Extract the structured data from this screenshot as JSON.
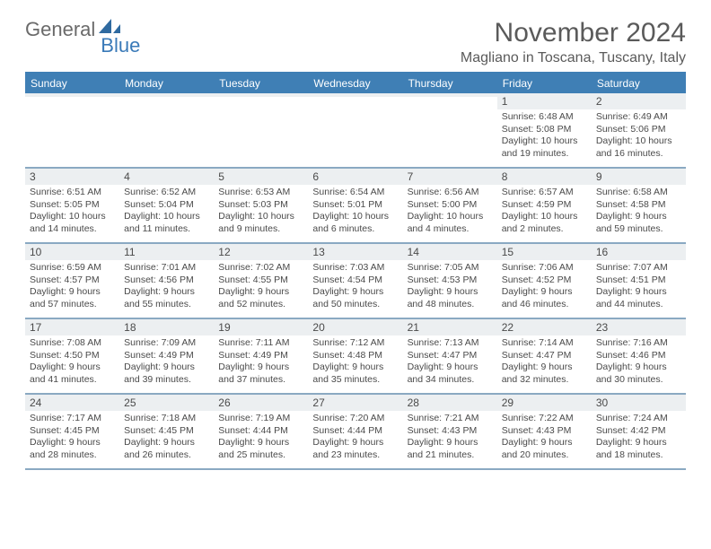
{
  "brand": {
    "word1": "General",
    "word2": "Blue"
  },
  "title": "November 2024",
  "location": "Magliano in Toscana, Tuscany, Italy",
  "colors": {
    "header_bg": "#3f7fb5",
    "header_text": "#ffffff",
    "daynum_bg": "#eceff1",
    "week_border": "#8aa9c2",
    "text": "#4a4a4a",
    "title_text": "#5a5a5a",
    "logo_gray": "#6a6a6a",
    "logo_blue": "#3a7ab8"
  },
  "weekdays": [
    "Sunday",
    "Monday",
    "Tuesday",
    "Wednesday",
    "Thursday",
    "Friday",
    "Saturday"
  ],
  "weeks": [
    [
      {
        "empty": true
      },
      {
        "empty": true
      },
      {
        "empty": true
      },
      {
        "empty": true
      },
      {
        "empty": true
      },
      {
        "num": "1",
        "sunrise": "Sunrise: 6:48 AM",
        "sunset": "Sunset: 5:08 PM",
        "day1": "Daylight: 10 hours",
        "day2": "and 19 minutes."
      },
      {
        "num": "2",
        "sunrise": "Sunrise: 6:49 AM",
        "sunset": "Sunset: 5:06 PM",
        "day1": "Daylight: 10 hours",
        "day2": "and 16 minutes."
      }
    ],
    [
      {
        "num": "3",
        "sunrise": "Sunrise: 6:51 AM",
        "sunset": "Sunset: 5:05 PM",
        "day1": "Daylight: 10 hours",
        "day2": "and 14 minutes."
      },
      {
        "num": "4",
        "sunrise": "Sunrise: 6:52 AM",
        "sunset": "Sunset: 5:04 PM",
        "day1": "Daylight: 10 hours",
        "day2": "and 11 minutes."
      },
      {
        "num": "5",
        "sunrise": "Sunrise: 6:53 AM",
        "sunset": "Sunset: 5:03 PM",
        "day1": "Daylight: 10 hours",
        "day2": "and 9 minutes."
      },
      {
        "num": "6",
        "sunrise": "Sunrise: 6:54 AM",
        "sunset": "Sunset: 5:01 PM",
        "day1": "Daylight: 10 hours",
        "day2": "and 6 minutes."
      },
      {
        "num": "7",
        "sunrise": "Sunrise: 6:56 AM",
        "sunset": "Sunset: 5:00 PM",
        "day1": "Daylight: 10 hours",
        "day2": "and 4 minutes."
      },
      {
        "num": "8",
        "sunrise": "Sunrise: 6:57 AM",
        "sunset": "Sunset: 4:59 PM",
        "day1": "Daylight: 10 hours",
        "day2": "and 2 minutes."
      },
      {
        "num": "9",
        "sunrise": "Sunrise: 6:58 AM",
        "sunset": "Sunset: 4:58 PM",
        "day1": "Daylight: 9 hours",
        "day2": "and 59 minutes."
      }
    ],
    [
      {
        "num": "10",
        "sunrise": "Sunrise: 6:59 AM",
        "sunset": "Sunset: 4:57 PM",
        "day1": "Daylight: 9 hours",
        "day2": "and 57 minutes."
      },
      {
        "num": "11",
        "sunrise": "Sunrise: 7:01 AM",
        "sunset": "Sunset: 4:56 PM",
        "day1": "Daylight: 9 hours",
        "day2": "and 55 minutes."
      },
      {
        "num": "12",
        "sunrise": "Sunrise: 7:02 AM",
        "sunset": "Sunset: 4:55 PM",
        "day1": "Daylight: 9 hours",
        "day2": "and 52 minutes."
      },
      {
        "num": "13",
        "sunrise": "Sunrise: 7:03 AM",
        "sunset": "Sunset: 4:54 PM",
        "day1": "Daylight: 9 hours",
        "day2": "and 50 minutes."
      },
      {
        "num": "14",
        "sunrise": "Sunrise: 7:05 AM",
        "sunset": "Sunset: 4:53 PM",
        "day1": "Daylight: 9 hours",
        "day2": "and 48 minutes."
      },
      {
        "num": "15",
        "sunrise": "Sunrise: 7:06 AM",
        "sunset": "Sunset: 4:52 PM",
        "day1": "Daylight: 9 hours",
        "day2": "and 46 minutes."
      },
      {
        "num": "16",
        "sunrise": "Sunrise: 7:07 AM",
        "sunset": "Sunset: 4:51 PM",
        "day1": "Daylight: 9 hours",
        "day2": "and 44 minutes."
      }
    ],
    [
      {
        "num": "17",
        "sunrise": "Sunrise: 7:08 AM",
        "sunset": "Sunset: 4:50 PM",
        "day1": "Daylight: 9 hours",
        "day2": "and 41 minutes."
      },
      {
        "num": "18",
        "sunrise": "Sunrise: 7:09 AM",
        "sunset": "Sunset: 4:49 PM",
        "day1": "Daylight: 9 hours",
        "day2": "and 39 minutes."
      },
      {
        "num": "19",
        "sunrise": "Sunrise: 7:11 AM",
        "sunset": "Sunset: 4:49 PM",
        "day1": "Daylight: 9 hours",
        "day2": "and 37 minutes."
      },
      {
        "num": "20",
        "sunrise": "Sunrise: 7:12 AM",
        "sunset": "Sunset: 4:48 PM",
        "day1": "Daylight: 9 hours",
        "day2": "and 35 minutes."
      },
      {
        "num": "21",
        "sunrise": "Sunrise: 7:13 AM",
        "sunset": "Sunset: 4:47 PM",
        "day1": "Daylight: 9 hours",
        "day2": "and 34 minutes."
      },
      {
        "num": "22",
        "sunrise": "Sunrise: 7:14 AM",
        "sunset": "Sunset: 4:47 PM",
        "day1": "Daylight: 9 hours",
        "day2": "and 32 minutes."
      },
      {
        "num": "23",
        "sunrise": "Sunrise: 7:16 AM",
        "sunset": "Sunset: 4:46 PM",
        "day1": "Daylight: 9 hours",
        "day2": "and 30 minutes."
      }
    ],
    [
      {
        "num": "24",
        "sunrise": "Sunrise: 7:17 AM",
        "sunset": "Sunset: 4:45 PM",
        "day1": "Daylight: 9 hours",
        "day2": "and 28 minutes."
      },
      {
        "num": "25",
        "sunrise": "Sunrise: 7:18 AM",
        "sunset": "Sunset: 4:45 PM",
        "day1": "Daylight: 9 hours",
        "day2": "and 26 minutes."
      },
      {
        "num": "26",
        "sunrise": "Sunrise: 7:19 AM",
        "sunset": "Sunset: 4:44 PM",
        "day1": "Daylight: 9 hours",
        "day2": "and 25 minutes."
      },
      {
        "num": "27",
        "sunrise": "Sunrise: 7:20 AM",
        "sunset": "Sunset: 4:44 PM",
        "day1": "Daylight: 9 hours",
        "day2": "and 23 minutes."
      },
      {
        "num": "28",
        "sunrise": "Sunrise: 7:21 AM",
        "sunset": "Sunset: 4:43 PM",
        "day1": "Daylight: 9 hours",
        "day2": "and 21 minutes."
      },
      {
        "num": "29",
        "sunrise": "Sunrise: 7:22 AM",
        "sunset": "Sunset: 4:43 PM",
        "day1": "Daylight: 9 hours",
        "day2": "and 20 minutes."
      },
      {
        "num": "30",
        "sunrise": "Sunrise: 7:24 AM",
        "sunset": "Sunset: 4:42 PM",
        "day1": "Daylight: 9 hours",
        "day2": "and 18 minutes."
      }
    ]
  ]
}
